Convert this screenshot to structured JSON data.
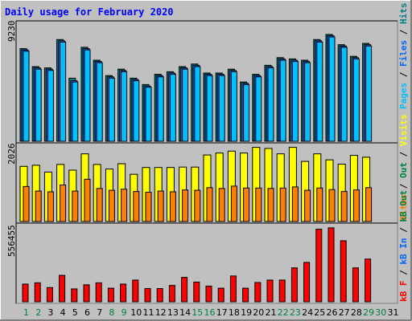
{
  "title": "Daily usage for February 2020",
  "colors": {
    "background": "#c0c0c0",
    "panel": "#c0c0c0",
    "title": "#0000ff",
    "hits": "#00c0ff",
    "hits_back": "#008080",
    "files": "#0066ff",
    "pages": "#00c0ff",
    "visits": "#ffff00",
    "sites": "#ff8000",
    "kbytes": "#ff0000",
    "weekend_label": "#008040",
    "weekday_label": "#000000"
  },
  "chart_data": [
    {
      "type": "bar",
      "panel": "hits-files-pages",
      "ylabel_max": "9230",
      "legend_labels": [
        "Pages",
        "Files",
        "Hits"
      ],
      "categories": [
        "1",
        "2",
        "3",
        "4",
        "5",
        "6",
        "7",
        "8",
        "9",
        "10",
        "11",
        "12",
        "13",
        "14",
        "15",
        "16",
        "17",
        "18",
        "19",
        "20",
        "21",
        "22",
        "23",
        "24",
        "25",
        "26",
        "27",
        "28",
        "29",
        "30",
        "31"
      ],
      "ylim": [
        0,
        9230
      ],
      "series": [
        {
          "name": "Hits",
          "values": [
            7200,
            5800,
            5700,
            7900,
            4900,
            7300,
            6300,
            5100,
            5600,
            4900,
            4400,
            5200,
            5400,
            5800,
            6000,
            5300,
            5300,
            5600,
            4600,
            5200,
            5900,
            6500,
            6400,
            6300,
            7900,
            8300,
            7500,
            6600,
            7600,
            0,
            0
          ]
        },
        {
          "name": "Files",
          "values": [
            7100,
            5700,
            5600,
            7800,
            4700,
            7200,
            6200,
            5000,
            5500,
            4800,
            4300,
            5100,
            5300,
            5700,
            5900,
            5200,
            5200,
            5500,
            4500,
            5100,
            5800,
            6400,
            6300,
            6200,
            7800,
            8200,
            7400,
            6500,
            7500,
            0,
            0
          ]
        },
        {
          "name": "Pages",
          "values": [
            7000,
            5600,
            5500,
            7700,
            4600,
            7100,
            6100,
            4900,
            5400,
            4700,
            4200,
            5000,
            5200,
            5600,
            5800,
            5100,
            5100,
            5400,
            4400,
            5000,
            5700,
            6300,
            6200,
            6100,
            7700,
            8100,
            7300,
            6400,
            7400,
            0,
            0
          ]
        }
      ]
    },
    {
      "type": "bar",
      "panel": "visits-sites",
      "ylabel_max": "2026",
      "legend_labels": [
        "Sites",
        "Out",
        "Visits"
      ],
      "categories": [
        "1",
        "2",
        "3",
        "4",
        "5",
        "6",
        "7",
        "8",
        "9",
        "10",
        "11",
        "12",
        "13",
        "14",
        "15",
        "16",
        "17",
        "18",
        "19",
        "20",
        "21",
        "22",
        "23",
        "24",
        "25",
        "26",
        "27",
        "28",
        "29",
        "30",
        "31"
      ],
      "ylim": [
        0,
        2026
      ],
      "series": [
        {
          "name": "Visits",
          "values": [
            1450,
            1480,
            1300,
            1500,
            1350,
            1780,
            1500,
            1380,
            1520,
            1240,
            1420,
            1420,
            1420,
            1430,
            1430,
            1750,
            1800,
            1850,
            1800,
            1950,
            1920,
            1780,
            1950,
            1580,
            1780,
            1620,
            1510,
            1740,
            1690,
            0,
            0
          ]
        },
        {
          "name": "Sites",
          "values": [
            920,
            800,
            780,
            960,
            800,
            1110,
            870,
            820,
            850,
            790,
            770,
            800,
            780,
            830,
            820,
            890,
            870,
            930,
            880,
            880,
            870,
            880,
            910,
            820,
            880,
            840,
            790,
            830,
            890,
            0,
            0
          ]
        }
      ]
    },
    {
      "type": "bar",
      "panel": "kbytes",
      "ylabel_max": "556455",
      "legend_labels": [
        "kB F",
        "kB In",
        "kB Out"
      ],
      "categories": [
        "1",
        "2",
        "3",
        "4",
        "5",
        "6",
        "7",
        "8",
        "9",
        "10",
        "11",
        "12",
        "13",
        "14",
        "15",
        "16",
        "17",
        "18",
        "19",
        "20",
        "21",
        "22",
        "23",
        "24",
        "25",
        "26",
        "27",
        "28",
        "29",
        "30",
        "31"
      ],
      "ylim": [
        0,
        556455
      ],
      "series": [
        {
          "name": "kB F",
          "values": [
            130000,
            140000,
            105000,
            195000,
            95000,
            125000,
            140000,
            100000,
            130000,
            160000,
            97000,
            97000,
            120000,
            180000,
            145000,
            115000,
            100000,
            190000,
            100000,
            142000,
            160000,
            160000,
            250000,
            290000,
            535000,
            545000,
            450000,
            250000,
            315000,
            0,
            0
          ]
        }
      ]
    }
  ]
}
